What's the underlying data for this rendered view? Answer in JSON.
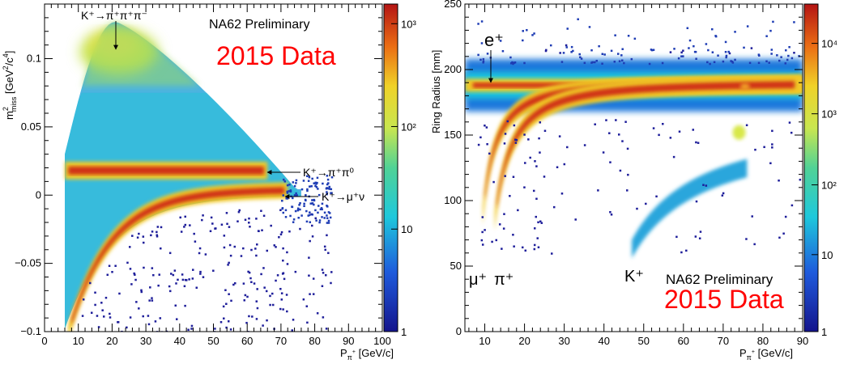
{
  "chart_data": [
    {
      "type": "heatmap",
      "xlabel_main": "P",
      "xlabel_sub": "π",
      "xlabel_sup": "+",
      "xlabel_unit": " [GeV/c]",
      "ylabel_m": "m",
      "ylabel_sup": "2",
      "ylabel_sub": "miss",
      "ylabel_unit": " [GeV",
      "ylabel_unit2": "2",
      "ylabel_unit3": "/c",
      "ylabel_unit4": "4",
      "ylabel_unit5": "]",
      "xlim": [
        0,
        100
      ],
      "ylim": [
        -0.1,
        0.14
      ],
      "x_ticks": [
        "0",
        "10",
        "20",
        "30",
        "40",
        "50",
        "60",
        "70",
        "80",
        "90",
        "100"
      ],
      "y_ticks": [
        "−0.1",
        "−0.05",
        "0",
        "0.05",
        "0.1"
      ],
      "z_scale": "log",
      "z_ticks": [
        "1",
        "10",
        "10²",
        "10³"
      ],
      "watermark": "NA62 Preliminary",
      "headline": "2015 Data",
      "annotations": [
        {
          "label": "K⁺→π⁺π⁺π⁻",
          "x": 21,
          "y": 0.108
        },
        {
          "label": "K⁺→π⁺π⁰",
          "x": 65,
          "y": 0.018
        },
        {
          "label": "K⁺→μ⁺ν",
          "x": 70,
          "y": 0.001
        }
      ],
      "bands": [
        {
          "name": "K⁺→π⁺π⁰",
          "y": 0.018,
          "x_range": [
            6,
            66
          ]
        },
        {
          "name": "K⁺→μ⁺ν",
          "y_at_70": 0.001,
          "x_range": [
            7,
            72
          ]
        },
        {
          "name": "K⁺→π⁺π⁺π⁻",
          "peak": [
            21,
            0.108
          ]
        }
      ]
    },
    {
      "type": "heatmap",
      "xlabel_main": "P",
      "xlabel_sub": "π",
      "xlabel_sup": "+",
      "xlabel_unit": " [GeV/c]",
      "ylabel": "Ring Radius [mm]",
      "xlim": [
        5,
        90
      ],
      "ylim": [
        0,
        250
      ],
      "x_ticks": [
        "10",
        "20",
        "30",
        "40",
        "50",
        "60",
        "70",
        "80",
        "90"
      ],
      "y_ticks": [
        "0",
        "50",
        "100",
        "150",
        "200",
        "250"
      ],
      "z_scale": "log",
      "z_ticks": [
        "1",
        "10",
        "10²",
        "10³",
        "10⁴"
      ],
      "watermark": "NA62 Preliminary",
      "headline": "2015 Data",
      "annotations": [
        {
          "label": "e⁺",
          "x": 12,
          "y": 188
        },
        {
          "label": "μ⁺",
          "x": 10,
          "y": 46
        },
        {
          "label": "π⁺",
          "x": 14,
          "y": 46
        },
        {
          "label": "K⁺",
          "x": 49,
          "y": 46
        }
      ],
      "bands": [
        {
          "name": "e⁺",
          "y": 188
        },
        {
          "name": "μ⁺",
          "x_threshold": 10
        },
        {
          "name": "π⁺",
          "x_threshold": 13
        },
        {
          "name": "K⁺",
          "x_threshold": 47
        }
      ]
    }
  ]
}
